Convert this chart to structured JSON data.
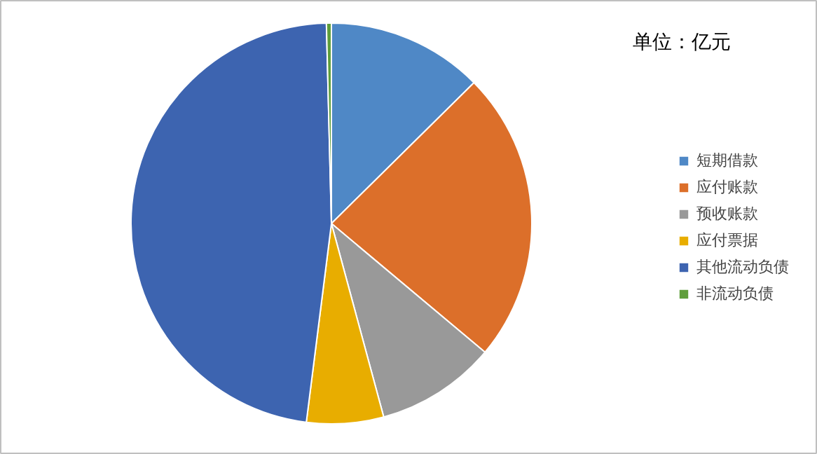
{
  "chart_data": {
    "type": "pie",
    "title": "单位：亿元",
    "categories": [
      "短期借款",
      "应付账款",
      "预收账款",
      "应付票据",
      "其他流动负债",
      "非流动负债"
    ],
    "values": [
      12.6,
      23.5,
      9.7,
      6.2,
      47.6,
      0.4
    ],
    "colors": [
      "#4f88c6",
      "#dc6f2a",
      "#999999",
      "#e8ad00",
      "#3d64b0",
      "#5f9e3c"
    ],
    "legend": "right"
  }
}
